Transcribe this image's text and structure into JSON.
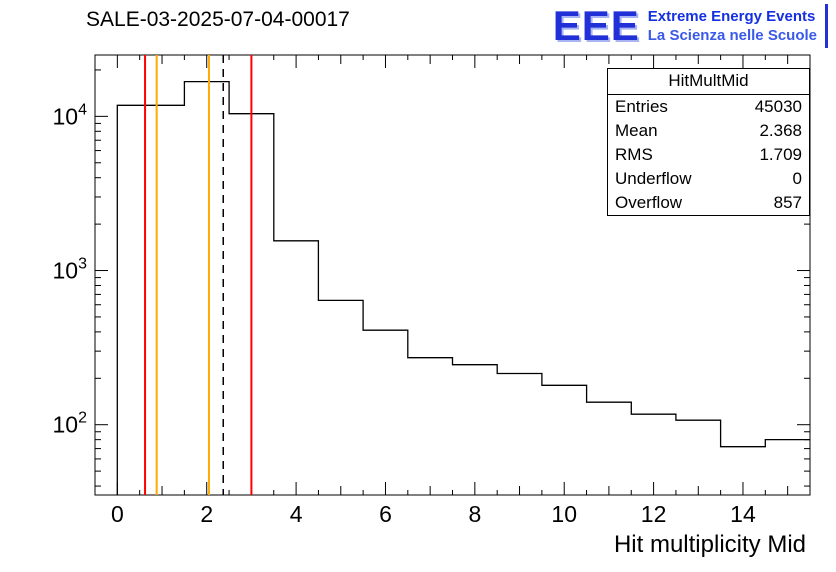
{
  "header": {
    "title": "SALE-03-2025-07-04-00017"
  },
  "logo": {
    "acronym": "EEE",
    "line1": "Extreme Energy Events",
    "line2": "La Scienza nelle Scuole"
  },
  "stats": {
    "title": "HitMultMid",
    "rows": [
      {
        "label": "Entries",
        "value": "45030"
      },
      {
        "label": "Mean",
        "value": "2.368"
      },
      {
        "label": "RMS",
        "value": "1.709"
      },
      {
        "label": "Underflow",
        "value": "0"
      },
      {
        "label": "Overflow",
        "value": "857"
      }
    ]
  },
  "chart_data": {
    "type": "bar",
    "subtype": "step-histogram-log-y",
    "title": "SALE-03-2025-07-04-00017",
    "xlabel": "Hit multiplicity Mid",
    "ylabel": "",
    "y_scale": "log",
    "x_range": [
      -0.5,
      15.5
    ],
    "y_range": [
      35,
      25000
    ],
    "grid": false,
    "line_color": "#000000",
    "bin_edges": [
      0,
      1.5,
      2.5,
      3.5,
      4.5,
      5.5,
      6.5,
      7.5,
      8.5,
      9.5,
      10.5,
      11.5,
      12.5,
      13.5,
      14.5,
      15.5
    ],
    "counts": [
      11800,
      16800,
      10400,
      1560,
      640,
      410,
      272,
      245,
      215,
      180,
      140,
      117,
      107,
      72,
      80
    ],
    "x_ticks_labeled": [
      0,
      2,
      4,
      6,
      8,
      10,
      12,
      14
    ],
    "y_ticks_decades": [
      2,
      3,
      4
    ],
    "marker_lines": [
      {
        "x": 0.62,
        "color": "#ff0000",
        "style": "solid"
      },
      {
        "x": 0.88,
        "color": "#ffaa00",
        "style": "solid"
      },
      {
        "x": 2.05,
        "color": "#ffaa00",
        "style": "solid"
      },
      {
        "x": 2.37,
        "color": "#000000",
        "style": "dashed"
      },
      {
        "x": 3.0,
        "color": "#ff0000",
        "style": "solid"
      }
    ]
  }
}
